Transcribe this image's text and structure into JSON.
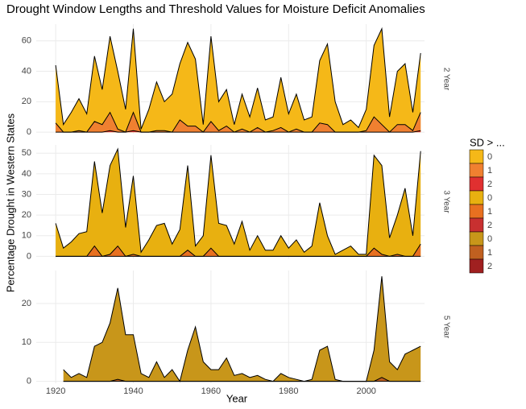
{
  "title": "Drought Window Lengths and Threshold Values for Moisture Deficit Anomalies",
  "x_label": "Year",
  "y_label": "Percentage Drought in Western States",
  "legend_title": "SD > ...",
  "chart_data": [
    {
      "type": "area",
      "facet": "2 Year",
      "x": [
        1920,
        1922,
        1924,
        1926,
        1928,
        1930,
        1932,
        1934,
        1936,
        1938,
        1940,
        1942,
        1944,
        1946,
        1948,
        1950,
        1952,
        1954,
        1956,
        1958,
        1960,
        1962,
        1964,
        1966,
        1968,
        1970,
        1972,
        1974,
        1976,
        1978,
        1980,
        1982,
        1984,
        1986,
        1988,
        1990,
        1992,
        1994,
        1996,
        1998,
        2000,
        2002,
        2004,
        2006,
        2008,
        2010,
        2012,
        2014
      ],
      "xlim": [
        1915,
        2015
      ],
      "xticks": [
        1920,
        1940,
        1960,
        1980,
        2000
      ],
      "ylim": [
        -1,
        71
      ],
      "yticks": [
        0,
        20,
        40,
        60
      ],
      "grid": true,
      "series": [
        {
          "name": "0",
          "color": "#f5b818",
          "values": [
            44,
            5,
            13,
            22,
            12,
            50,
            28,
            63,
            40,
            15,
            68,
            2,
            15,
            33,
            20,
            25,
            45,
            59,
            48,
            5,
            63,
            20,
            28,
            5,
            25,
            10,
            29,
            8,
            10,
            36,
            12,
            25,
            8,
            10,
            47,
            58,
            20,
            5,
            8,
            3,
            15,
            57,
            68,
            10,
            40,
            45,
            13,
            52
          ]
        },
        {
          "name": "1",
          "color": "#f08030",
          "values": [
            6,
            0,
            0,
            1,
            0,
            7,
            5,
            13,
            2,
            0,
            13,
            0,
            0,
            1,
            1,
            0,
            8,
            4,
            4,
            0,
            7,
            1,
            4,
            0,
            2,
            0,
            3,
            0,
            1,
            3,
            0,
            2,
            0,
            0,
            6,
            5,
            0,
            0,
            0,
            0,
            1,
            10,
            5,
            0,
            5,
            5,
            1,
            13
          ]
        },
        {
          "name": "2",
          "color": "#e03030",
          "values": [
            0,
            0,
            0,
            0,
            0,
            0,
            0,
            1,
            0,
            0,
            1,
            0,
            0,
            0,
            0,
            0,
            0,
            0,
            0,
            0,
            0,
            0,
            0,
            0,
            0,
            0,
            0,
            0,
            0,
            0,
            0,
            0,
            0,
            0,
            0,
            0,
            0,
            0,
            0,
            0,
            0,
            0,
            0,
            0,
            0,
            0,
            0,
            1
          ]
        }
      ]
    },
    {
      "type": "area",
      "facet": "3 Year",
      "x": [
        1920,
        1922,
        1924,
        1926,
        1928,
        1930,
        1932,
        1934,
        1936,
        1938,
        1940,
        1942,
        1944,
        1946,
        1948,
        1950,
        1952,
        1954,
        1956,
        1958,
        1960,
        1962,
        1964,
        1966,
        1968,
        1970,
        1972,
        1974,
        1976,
        1978,
        1980,
        1982,
        1984,
        1986,
        1988,
        1990,
        1992,
        1994,
        1996,
        1998,
        2000,
        2002,
        2004,
        2006,
        2008,
        2010,
        2012,
        2014
      ],
      "xlim": [
        1915,
        2015
      ],
      "xticks": [
        1920,
        1940,
        1960,
        1980,
        2000
      ],
      "ylim": [
        -1,
        54
      ],
      "yticks": [
        0,
        10,
        20,
        30,
        40,
        50
      ],
      "grid": true,
      "series": [
        {
          "name": "0",
          "color": "#e8b010",
          "values": [
            16,
            4,
            7,
            11,
            12,
            46,
            21,
            44,
            52,
            14,
            39,
            2,
            8,
            15,
            16,
            6,
            13,
            44,
            5,
            10,
            49,
            16,
            15,
            6,
            17,
            3,
            10,
            3,
            3,
            10,
            4,
            8,
            2,
            5,
            26,
            10,
            1,
            3,
            5,
            1,
            1,
            49,
            44,
            9,
            20,
            33,
            10,
            51
          ]
        },
        {
          "name": "1",
          "color": "#e87020",
          "values": [
            0,
            0,
            0,
            0,
            0,
            5,
            0,
            1,
            5,
            0,
            1,
            0,
            0,
            0,
            0,
            0,
            0,
            3,
            0,
            0,
            4,
            0,
            0,
            0,
            0,
            0,
            0,
            0,
            0,
            0,
            0,
            0,
            0,
            0,
            0,
            0,
            0,
            0,
            0,
            0,
            0,
            4,
            1,
            0,
            1,
            0,
            0,
            6
          ]
        },
        {
          "name": "2",
          "color": "#c83030",
          "values": [
            0,
            0,
            0,
            0,
            0,
            0,
            0,
            0,
            0,
            0,
            0,
            0,
            0,
            0,
            0,
            0,
            0,
            0,
            0,
            0,
            0,
            0,
            0,
            0,
            0,
            0,
            0,
            0,
            0,
            0,
            0,
            0,
            0,
            0,
            0,
            0,
            0,
            0,
            0,
            0,
            0,
            0,
            0,
            0,
            0,
            0,
            0,
            0
          ]
        }
      ]
    },
    {
      "type": "area",
      "facet": "5 Year",
      "x": [
        1920,
        1922,
        1924,
        1926,
        1928,
        1930,
        1932,
        1934,
        1936,
        1938,
        1940,
        1942,
        1944,
        1946,
        1948,
        1950,
        1952,
        1954,
        1956,
        1958,
        1960,
        1962,
        1964,
        1966,
        1968,
        1970,
        1972,
        1974,
        1976,
        1978,
        1980,
        1982,
        1984,
        1986,
        1988,
        1990,
        1992,
        1994,
        1996,
        1998,
        2000,
        2002,
        2004,
        2006,
        2008,
        2010,
        2012,
        2014
      ],
      "xlim": [
        1915,
        2015
      ],
      "xticks": [
        1920,
        1940,
        1960,
        1980,
        2000
      ],
      "ylim": [
        -0.5,
        28.5
      ],
      "yticks": [
        0,
        10,
        20
      ],
      "grid": true,
      "series": [
        {
          "name": "0",
          "color": "#c8961a",
          "values": [
            null,
            3,
            1,
            2,
            1,
            9,
            10,
            15,
            24,
            12,
            12,
            2,
            1,
            5,
            1,
            3,
            0,
            8,
            14,
            5,
            3,
            3,
            6,
            1.5,
            2,
            1,
            1.5,
            0.5,
            0,
            2,
            1,
            0.5,
            0,
            0.5,
            8,
            9,
            0.5,
            0,
            0,
            0,
            0,
            8,
            27,
            5,
            3,
            7,
            8,
            9
          ]
        },
        {
          "name": "1",
          "color": "#c06020",
          "values": [
            null,
            0,
            0,
            0,
            0,
            0,
            0,
            0,
            0.5,
            0,
            0,
            0,
            0,
            0,
            0,
            0,
            0,
            0,
            0,
            0,
            0,
            0,
            0,
            0,
            0,
            0,
            0,
            0,
            0,
            0,
            0,
            0,
            0,
            0,
            0,
            0,
            0,
            0,
            0,
            0,
            0,
            0,
            1,
            0,
            0,
            0,
            0,
            0
          ]
        },
        {
          "name": "2",
          "color": "#a02020",
          "values": [
            null,
            0,
            0,
            0,
            0,
            0,
            0,
            0,
            0,
            0,
            0,
            0,
            0,
            0,
            0,
            0,
            0,
            0,
            0,
            0,
            0,
            0,
            0,
            0,
            0,
            0,
            0,
            0,
            0,
            0,
            0,
            0,
            0,
            0,
            0,
            0,
            0,
            0,
            0,
            0,
            0,
            0,
            0,
            0,
            0,
            0,
            0,
            0
          ]
        }
      ]
    }
  ]
}
